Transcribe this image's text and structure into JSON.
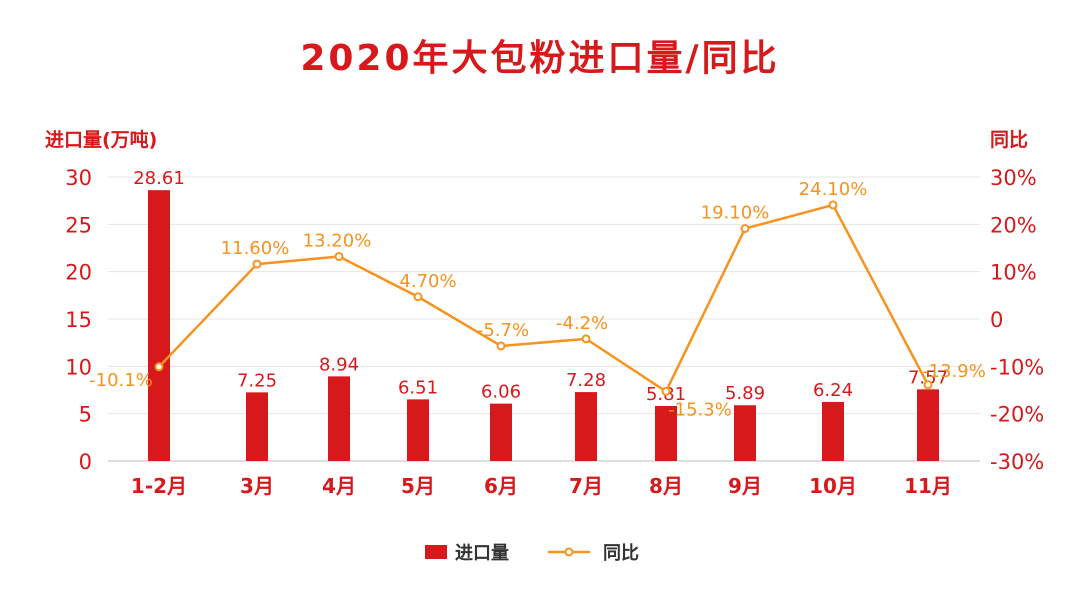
{
  "chart_data": {
    "type": "bar+line",
    "title": "2020年大包粉进口量/同比",
    "categories": [
      "1-2月",
      "3月",
      "4月",
      "5月",
      "6月",
      "7月",
      "8月",
      "9月",
      "10月",
      "11月"
    ],
    "left_axis": {
      "label": "进口量(万吨)",
      "ylim": [
        0,
        30
      ],
      "ticks": [
        0,
        5,
        10,
        15,
        20,
        25,
        30
      ],
      "tick_labels": [
        "0",
        "5",
        "10",
        "15",
        "20",
        "25",
        "30"
      ]
    },
    "right_axis": {
      "label": "同比",
      "ylim": [
        -30,
        30
      ],
      "ticks": [
        -30,
        -20,
        -10,
        0,
        10,
        20,
        30
      ],
      "tick_labels": [
        "-30%",
        "-20%",
        "-10%",
        "0",
        "10%",
        "20%",
        "30%"
      ]
    },
    "series": [
      {
        "name": "进口量",
        "type": "bar",
        "axis": "left",
        "color": "#d7191c",
        "values": [
          28.61,
          7.25,
          8.94,
          6.51,
          6.06,
          7.28,
          5.81,
          5.89,
          6.24,
          7.57
        ],
        "labels": [
          "28.61",
          "7.25",
          "8.94",
          "6.51",
          "6.06",
          "7.28",
          "5.81",
          "5.89",
          "6.24",
          "7.57"
        ]
      },
      {
        "name": "同比",
        "type": "line",
        "axis": "right",
        "color": "#f7931e",
        "values": [
          -10.1,
          11.6,
          13.2,
          4.7,
          -5.7,
          -4.2,
          -15.3,
          19.1,
          24.1,
          -13.9
        ],
        "labels": [
          "-10.1%",
          "11.60%",
          "13.20%",
          "4.70%",
          "-5.7%",
          "-4.2%",
          "-15.3%",
          "19.10%",
          "24.10%",
          "-13.9%"
        ]
      }
    ],
    "grid": true,
    "legend": "bottom"
  }
}
